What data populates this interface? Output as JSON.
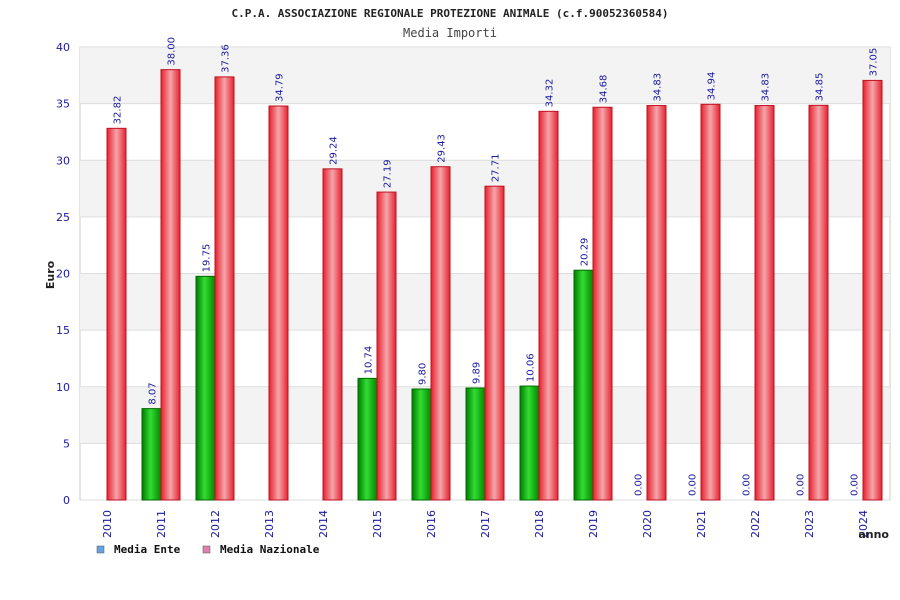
{
  "chart_data": {
    "type": "bar",
    "title": "C.P.A. ASSOCIAZIONE REGIONALE PROTEZIONE ANIMALE (c.f.90052360584)",
    "subtitle": "Media Importi",
    "xlabel": "anno",
    "ylabel": "Euro",
    "ylim": [
      0,
      40
    ],
    "yticks": [
      0,
      5,
      10,
      15,
      20,
      25,
      30,
      35,
      40
    ],
    "categories": [
      "2010",
      "2011",
      "2012",
      "2013",
      "2014",
      "2015",
      "2016",
      "2017",
      "2018",
      "2019",
      "2020",
      "2021",
      "2022",
      "2023",
      "2024"
    ],
    "series": [
      {
        "name": "Media Ente",
        "color": "#00b000",
        "legend_color": "#66a3e0",
        "values": [
          null,
          8.07,
          19.75,
          null,
          null,
          10.74,
          9.8,
          9.89,
          10.06,
          20.29,
          0.0,
          0.0,
          0.0,
          0.0,
          0.0
        ],
        "labels": [
          "",
          "8.07",
          "19.75",
          "",
          "",
          "10.74",
          "9.80",
          "9.89",
          "10.06",
          "20.29",
          "0.00",
          "0.00",
          "0.00",
          "0.00",
          "0.00"
        ]
      },
      {
        "name": "Media Nazionale",
        "color": "#e8202e",
        "legend_color": "#e080b0",
        "values": [
          32.82,
          38.0,
          37.36,
          34.79,
          29.24,
          27.19,
          29.43,
          27.71,
          34.32,
          34.68,
          34.83,
          34.94,
          34.83,
          34.85,
          37.05
        ],
        "labels": [
          "32.82",
          "38.00",
          "37.36",
          "34.79",
          "29.24",
          "27.19",
          "29.43",
          "27.71",
          "34.32",
          "34.68",
          "34.83",
          "34.94",
          "34.83",
          "34.85",
          "37.05"
        ]
      }
    ],
    "legend_position": "bottom-left",
    "grid": true
  }
}
